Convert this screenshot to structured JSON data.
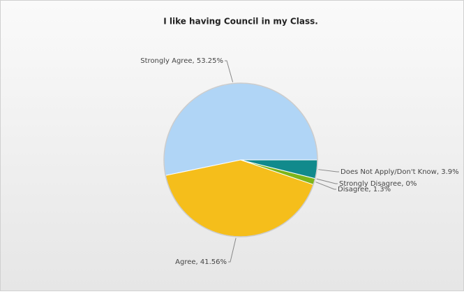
{
  "chart_data": {
    "type": "pie",
    "title": "I like having Council in my Class.",
    "categories": [
      "Strongly Agree",
      "Agree",
      "Disagree",
      "Strongly Disagree",
      "Does Not Apply/Don't Know"
    ],
    "values": [
      53.25,
      41.56,
      1.3,
      0,
      3.9
    ],
    "value_labels": [
      "Strongly Agree, 53.25%",
      "Agree, 41.56%",
      "Disagree, 1.3%",
      "Strongly Disagree, 0%",
      "Does Not Apply/Don't Know, 3.9%"
    ],
    "colors": [
      "#b0d5f6",
      "#f5be1b",
      "#7db51a",
      "#4f8f2a",
      "#118a8c"
    ]
  }
}
